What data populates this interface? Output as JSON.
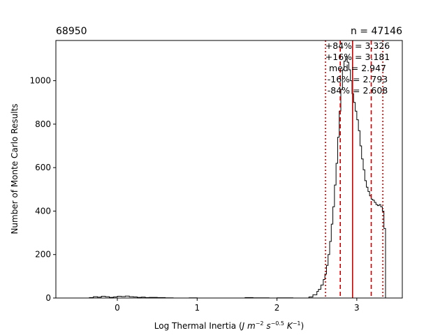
{
  "chart_data": {
    "type": "histogram",
    "title_left": "68950",
    "title_right": "n = 47146",
    "xlabel": {
      "prefix": "Log Thermal Inertia (",
      "units": "J m^-2 s^-0.5 K^-1",
      "suffix": ")"
    },
    "ylabel": "Number of Monte Carlo Results",
    "xlim": [
      -0.77,
      3.57
    ],
    "ylim": [
      0,
      1185
    ],
    "xticks": [
      0,
      1,
      2,
      3
    ],
    "yticks": [
      0,
      200,
      400,
      600,
      800,
      1000
    ],
    "lines": [
      {
        "name": "+84%",
        "x": 3.326,
        "style": "dotted"
      },
      {
        "name": "+16%",
        "x": 3.181,
        "style": "dashed"
      },
      {
        "name": "med",
        "x": 2.947,
        "style": "solid"
      },
      {
        "name": "-16%",
        "x": 2.793,
        "style": "dashed"
      },
      {
        "name": "-84%",
        "x": 2.608,
        "style": "dotted"
      }
    ],
    "annotations": [
      "+84% = 3.326",
      "+16% = 3.181",
      "med = 2.947",
      "-16% = 2.793",
      "-84% = 2.608"
    ],
    "line_color": "#cc0000",
    "hist_color": "#000000",
    "histogram": {
      "x": [
        -0.7,
        -0.4,
        -0.35,
        -0.3,
        -0.25,
        -0.2,
        -0.15,
        -0.1,
        -0.05,
        0.0,
        0.05,
        0.1,
        0.15,
        0.2,
        0.25,
        0.3,
        0.35,
        0.4,
        0.5,
        0.6,
        0.7,
        0.9,
        1.0,
        1.2,
        1.6,
        1.7,
        1.9,
        2.0,
        2.2,
        2.4,
        2.45,
        2.5,
        2.52,
        2.55,
        2.58,
        2.6,
        2.62,
        2.64,
        2.66,
        2.68,
        2.7,
        2.72,
        2.74,
        2.76,
        2.78,
        2.8,
        2.82,
        2.84,
        2.86,
        2.88,
        2.9,
        2.92,
        2.94,
        2.96,
        2.98,
        3.0,
        3.02,
        3.04,
        3.06,
        3.08,
        3.1,
        3.12,
        3.14,
        3.16,
        3.18,
        3.2,
        3.22,
        3.24,
        3.26,
        3.28,
        3.3,
        3.32,
        3.34,
        3.36
      ],
      "y": [
        0,
        0,
        2,
        6,
        4,
        8,
        6,
        3,
        5,
        8,
        7,
        9,
        6,
        5,
        3,
        4,
        2,
        3,
        2,
        1,
        0,
        1,
        0,
        0,
        2,
        1,
        0,
        1,
        0,
        5,
        15,
        30,
        40,
        60,
        85,
        110,
        150,
        200,
        260,
        340,
        420,
        520,
        620,
        740,
        860,
        960,
        1050,
        1090,
        1110,
        1085,
        1050,
        1000,
        940,
        900,
        860,
        820,
        770,
        700,
        640,
        590,
        540,
        510,
        490,
        470,
        455,
        450,
        440,
        430,
        425,
        430,
        420,
        400,
        320,
        0
      ]
    }
  }
}
